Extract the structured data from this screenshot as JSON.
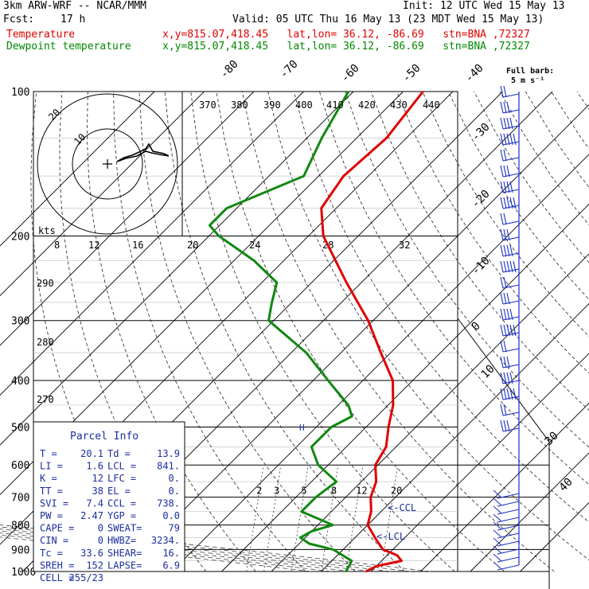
{
  "header": {
    "model": "3km ARW-WRF -- NCAR/MMM",
    "init": "Init: 12 UTC Wed 15 May 13",
    "fcst_label": "Fcst:",
    "fcst_value": "17 h",
    "valid": "Valid: 05 UTC Thu 16 May 13 (23 MDT Wed 15 May 13)",
    "temp_label": "Temperature",
    "temp_info": "x,y=815.07,418.45   lat,lon= 36.12, -86.69   stn=BNA ,72327",
    "dew_label": "Dewpoint temperature",
    "dew_info": "x,y=815.07,418.45   lat,lon= 36.12, -86.69   stn=BNA ,72327"
  },
  "colors": {
    "temperature": "#e00000",
    "dewpoint": "#118811",
    "parcel_text": "#1b2e9e",
    "barbs": "#1b2ec8"
  },
  "icons": [
    "hodograph-ring-icon",
    "wind-barb-icon",
    "full-barb-legend-icon"
  ],
  "chart_data": {
    "type": "line",
    "subtype": "skew-T log-P sounding",
    "pressure_ticks": [
      "100",
      "200",
      "300",
      "400",
      "500",
      "600",
      "700",
      "800",
      "900",
      "1000"
    ],
    "pressure_values": [
      100,
      200,
      300,
      400,
      500,
      600,
      700,
      800,
      900,
      1000
    ],
    "isotherm_labels": [
      "-80",
      "-70",
      "-60",
      "-50",
      "-40",
      "-30",
      "-20",
      "-10",
      "0",
      "10",
      "30",
      "40"
    ],
    "theta_labels": [
      "370",
      "380",
      "390",
      "400",
      "410",
      "420",
      "430",
      "440"
    ],
    "theta_side_labels": [
      "290",
      "280",
      "270"
    ],
    "hodo_speed_labels": [
      "8",
      "12",
      "16",
      "20",
      "24",
      "28",
      "32"
    ],
    "hodo_ring_labels": [
      "10",
      "20"
    ],
    "hodo_units": "kts",
    "mixing_ratio_labels": [
      "2",
      "3",
      "5",
      "8",
      "12",
      "20"
    ],
    "barb_legend": [
      "Full barb:",
      "5 m s⁻¹"
    ],
    "ccl_label": "<-CCL",
    "lcl_label": "<-LCL",
    "series": [
      {
        "name": "Temperature",
        "pressure": [
          100,
          125,
          150,
          175,
          200,
          250,
          300,
          350,
          400,
          450,
          500,
          550,
          600,
          650,
          700,
          750,
          800,
          850,
          900,
          925,
          950,
          975,
          1000
        ],
        "temp_c": [
          -66,
          -64,
          -65,
          -63,
          -57,
          -43,
          -31,
          -22,
          -14,
          -9,
          -5.5,
          -2,
          -0.5,
          3,
          5,
          8,
          10,
          14,
          18,
          22,
          24,
          20,
          19
        ]
      },
      {
        "name": "Dewpoint temperature",
        "pressure": [
          100,
          125,
          150,
          175,
          190,
          200,
          225,
          250,
          275,
          300,
          350,
          400,
          450,
          475,
          500,
          550,
          600,
          650,
          700,
          750,
          800,
          825,
          850,
          875,
          900,
          950,
          1000
        ],
        "temp_c": [
          -81,
          -77,
          -73,
          -82,
          -82,
          -78,
          -66,
          -57,
          -54,
          -51,
          -37,
          -27,
          -18,
          -15,
          -17,
          -17,
          -12,
          -5,
          -6,
          -6,
          3,
          0,
          -1,
          2,
          8,
          14,
          15
        ]
      }
    ],
    "parcel_info": {
      "title": "Parcel Info",
      "rows": [
        [
          "T  =",
          "20.1",
          "Td =",
          "13.9"
        ],
        [
          "LI =",
          "1.6",
          "LCL =",
          "841."
        ],
        [
          "K  =",
          "12",
          "LFC =",
          "0."
        ],
        [
          "TT =",
          "38",
          "EL =",
          "0."
        ],
        [
          "SVI =",
          "7.4",
          "CCL =",
          "738."
        ],
        [
          "PW =",
          "2.47",
          "YGP =",
          "0.0"
        ],
        [
          "CAPE =",
          "0",
          "SWEAT=",
          "79"
        ],
        [
          "CIN =",
          "0",
          "HWBZ=",
          "3234."
        ],
        [
          "Tc =",
          "33.6",
          "SHEAR=",
          "16."
        ],
        [
          "SREH =",
          "152",
          "LAPSE=",
          "6.9"
        ],
        [
          "CELL =",
          "255/23",
          "",
          ""
        ]
      ]
    }
  }
}
